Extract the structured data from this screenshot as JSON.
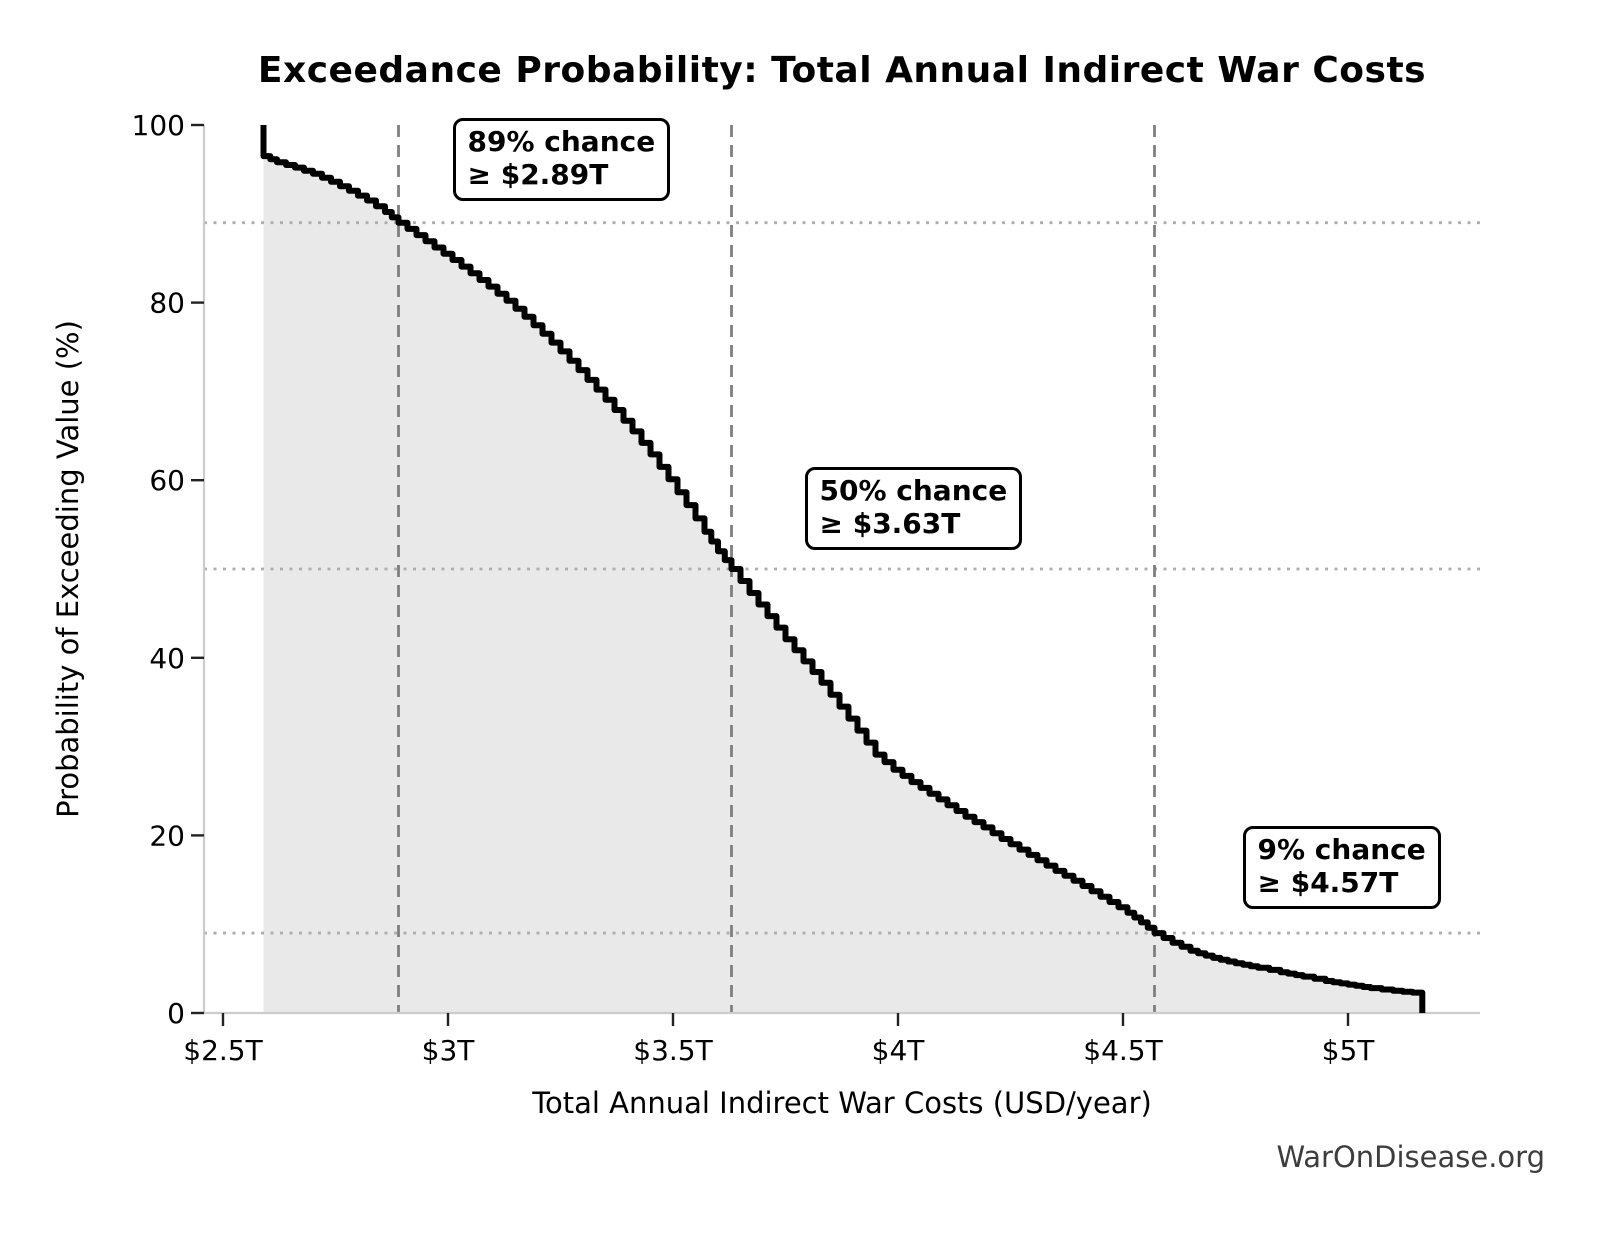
{
  "title": "Exceedance Probability: Total Annual Indirect War Costs",
  "watermark": "WarOnDisease.org",
  "chart_data": {
    "type": "line",
    "subtype": "exceedance-step-curve-with-filled-area",
    "title": "Exceedance Probability: Total Annual Indirect War Costs",
    "xlabel": "Total Annual Indirect War Costs (USD/year)",
    "ylabel": "Probability of Exceeding Value (%)",
    "x_unit": "trillion USD per year",
    "xlim": [
      2.46,
      5.29
    ],
    "ylim": [
      0,
      100
    ],
    "grid": "none (only threshold guide lines)",
    "legend_position": "none",
    "x_ticks": [
      {
        "value": 2.5,
        "label": "$2.5T"
      },
      {
        "value": 3.0,
        "label": "$3T"
      },
      {
        "value": 3.5,
        "label": "$3.5T"
      },
      {
        "value": 4.0,
        "label": "$4T"
      },
      {
        "value": 4.5,
        "label": "$4.5T"
      },
      {
        "value": 5.0,
        "label": "$5T"
      }
    ],
    "y_ticks": [
      {
        "value": 0,
        "label": "0"
      },
      {
        "value": 20,
        "label": "20"
      },
      {
        "value": 40,
        "label": "40"
      },
      {
        "value": 60,
        "label": "60"
      },
      {
        "value": 80,
        "label": "80"
      },
      {
        "value": 100,
        "label": "100"
      }
    ],
    "series": [
      {
        "name": "Probability of exceeding total annual indirect war costs",
        "points": [
          [
            2.59,
            100
          ],
          [
            2.59,
            96.5
          ],
          [
            2.62,
            95.8
          ],
          [
            2.66,
            95.2
          ],
          [
            2.7,
            94.5
          ],
          [
            2.74,
            93.6
          ],
          [
            2.78,
            92.6
          ],
          [
            2.82,
            91.5
          ],
          [
            2.86,
            90.2
          ],
          [
            2.89,
            89.0
          ],
          [
            2.93,
            87.6
          ],
          [
            2.97,
            86.2
          ],
          [
            3.01,
            84.8
          ],
          [
            3.05,
            83.3
          ],
          [
            3.09,
            81.8
          ],
          [
            3.13,
            80.2
          ],
          [
            3.17,
            78.4
          ],
          [
            3.21,
            76.5
          ],
          [
            3.25,
            74.5
          ],
          [
            3.29,
            72.4
          ],
          [
            3.33,
            70.2
          ],
          [
            3.37,
            67.9
          ],
          [
            3.41,
            65.5
          ],
          [
            3.45,
            62.9
          ],
          [
            3.49,
            60.1
          ],
          [
            3.53,
            57.2
          ],
          [
            3.57,
            54.2
          ],
          [
            3.6,
            52.0
          ],
          [
            3.63,
            50.0
          ],
          [
            3.67,
            47.3
          ],
          [
            3.71,
            44.7
          ],
          [
            3.75,
            42.1
          ],
          [
            3.79,
            39.6
          ],
          [
            3.83,
            37.2
          ],
          [
            3.87,
            34.5
          ],
          [
            3.91,
            31.8
          ],
          [
            3.95,
            29.1
          ],
          [
            3.99,
            27.4
          ],
          [
            4.03,
            26.0
          ],
          [
            4.07,
            24.7
          ],
          [
            4.11,
            23.4
          ],
          [
            4.15,
            22.1
          ],
          [
            4.19,
            20.9
          ],
          [
            4.23,
            19.6
          ],
          [
            4.27,
            18.4
          ],
          [
            4.31,
            17.2
          ],
          [
            4.35,
            16.0
          ],
          [
            4.39,
            14.9
          ],
          [
            4.43,
            13.7
          ],
          [
            4.47,
            12.5
          ],
          [
            4.51,
            11.3
          ],
          [
            4.54,
            10.2
          ],
          [
            4.57,
            9.0
          ],
          [
            4.61,
            7.9
          ],
          [
            4.65,
            7.0
          ],
          [
            4.7,
            6.2
          ],
          [
            4.75,
            5.6
          ],
          [
            4.8,
            5.1
          ],
          [
            4.85,
            4.6
          ],
          [
            4.9,
            4.1
          ],
          [
            4.95,
            3.6
          ],
          [
            5.0,
            3.2
          ],
          [
            5.05,
            2.8
          ],
          [
            5.1,
            2.5
          ],
          [
            5.165,
            2.2
          ],
          [
            5.165,
            0
          ]
        ]
      }
    ],
    "annotations": [
      {
        "lines": [
          "89% chance",
          "≥ $2.89T"
        ],
        "value_T": 2.89,
        "prob_pct": 89
      },
      {
        "lines": [
          "50% chance",
          "≥ $3.63T"
        ],
        "value_T": 3.63,
        "prob_pct": 50
      },
      {
        "lines": [
          "9% chance",
          "≥ $4.57T"
        ],
        "value_T": 4.57,
        "prob_pct": 9
      }
    ]
  },
  "colors": {
    "curve": "#000000",
    "area_fill": "#e9e9e9",
    "dashed_threshold_line": "#7f7f7f",
    "dotted_probability_line": "#aeaeae",
    "spine": "#cccccc",
    "tick": "#222222",
    "text": "#000000",
    "watermark_text": "#3d3d3d",
    "annotation_border": "#000000",
    "annotation_bg": "#ffffff"
  }
}
